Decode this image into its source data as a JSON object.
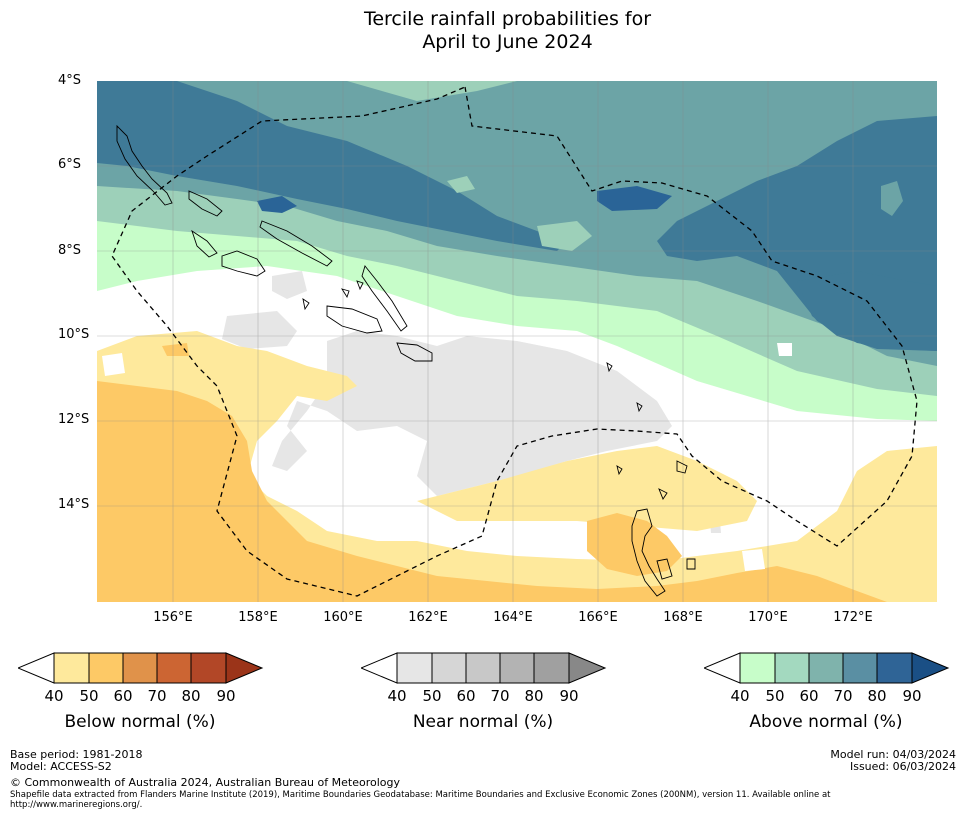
{
  "title": {
    "line1": "Tercile rainfall probabilities for",
    "line2": "April to June 2024"
  },
  "map": {
    "lat_labels": [
      "4°S",
      "6°S",
      "8°S",
      "10°S",
      "12°S",
      "14°S"
    ],
    "lon_labels": [
      "156°E",
      "158°E",
      "160°E",
      "162°E",
      "164°E",
      "166°E",
      "168°E",
      "170°E",
      "172°E"
    ],
    "colors": {
      "below": [
        "#ffffff",
        "#fee99c",
        "#fdc966",
        "#e0924a",
        "#cc6533",
        "#b24727",
        "#9b3419"
      ],
      "near": [
        "#ffffff",
        "#e6e6e6",
        "#d6d6d6",
        "#c8c8c8",
        "#b3b3b3",
        "#a0a0a0",
        "#888888"
      ],
      "above": [
        "#ffffff",
        "#c7fdc9",
        "#9dd0b9",
        "#6ca4a6",
        "#3f7a97",
        "#2a6497",
        "#1a4f85"
      ]
    }
  },
  "colorbars": [
    {
      "label": "Below normal (%)",
      "ticks": [
        "40",
        "50",
        "60",
        "70",
        "80",
        "90"
      ]
    },
    {
      "label": "Near normal (%)",
      "ticks": [
        "40",
        "50",
        "60",
        "70",
        "80",
        "90"
      ]
    },
    {
      "label": "Above normal (%)",
      "ticks": [
        "40",
        "50",
        "60",
        "70",
        "80",
        "90"
      ]
    }
  ],
  "footer": {
    "base_period": "Base period: 1981-2018",
    "model": "Model: ACCESS-S2",
    "model_run": "Model run: 04/03/2024",
    "issued": "Issued: 06/03/2024",
    "copyright": "© Commonwealth of Australia 2024, Australian Bureau of Meteorology",
    "shapefile_line1": "Shapefile data extracted from Flanders Marine Institute (2019), Maritime Boundaries Geodatabase: Maritime Boundaries and Exclusive Economic Zones (200NM), version 11. Available online at",
    "shapefile_line2": "http://www.marineregions.org/."
  }
}
